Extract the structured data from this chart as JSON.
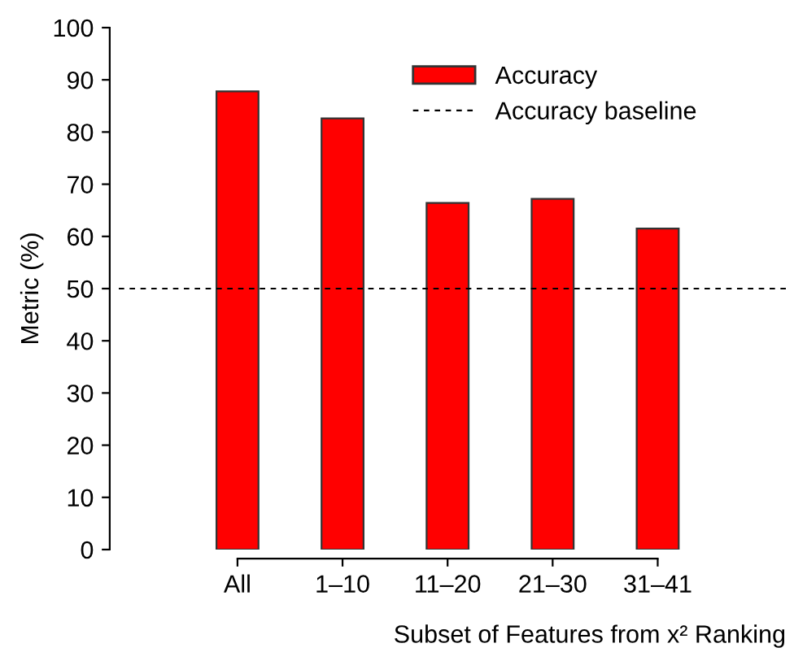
{
  "chart_data": {
    "type": "bar",
    "xlabel": "Subset of Features from x² Ranking",
    "ylabel": "Metric (%)",
    "categories": [
      "All",
      "1–10",
      "11–20",
      "21–30",
      "31–41"
    ],
    "series": [
      {
        "name": "Accuracy",
        "color": "#ff0000",
        "values": [
          87.8,
          82.6,
          66.4,
          67.2,
          61.5
        ]
      }
    ],
    "ylim": [
      0,
      100
    ],
    "yticks": [
      0,
      10,
      20,
      30,
      40,
      50,
      60,
      70,
      80,
      90,
      100
    ],
    "ref_lines": [
      {
        "axis": "y",
        "value": 50,
        "label": "Accuracy baseline",
        "color": "#000000",
        "line_style": "dashed"
      }
    ],
    "legend": "top right",
    "grid": false
  }
}
